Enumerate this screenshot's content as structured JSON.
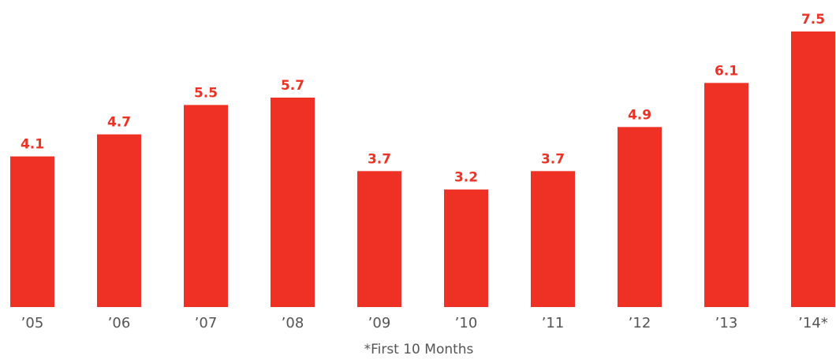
{
  "chart_data": {
    "type": "bar",
    "note": "*First 10 Months",
    "categories": [
      "’05",
      "’06",
      "’07",
      "’08",
      "’09",
      "’10",
      "’11",
      "’12",
      "’13",
      "’14*"
    ],
    "values": [
      4.1,
      4.7,
      5.5,
      5.7,
      3.7,
      3.2,
      3.7,
      4.9,
      6.1,
      7.5
    ],
    "color": "#ee3124"
  }
}
